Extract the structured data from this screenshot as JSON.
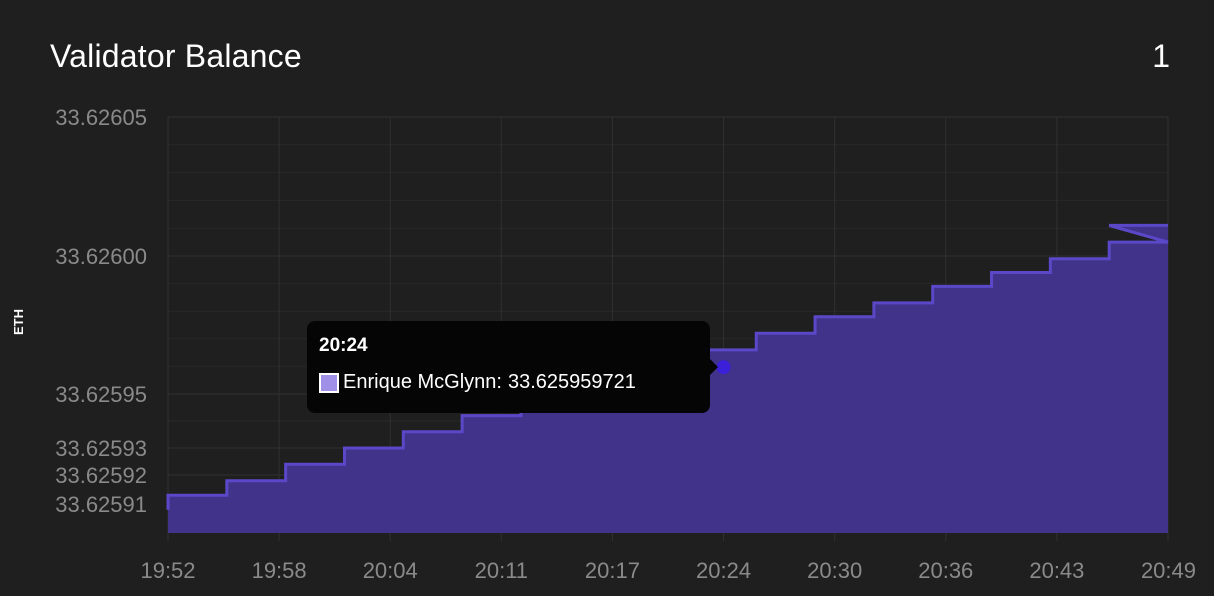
{
  "header": {
    "title": "Validator Balance",
    "count": "1"
  },
  "chart_data": {
    "type": "area",
    "step": true,
    "title": "Validator Balance",
    "xlabel": "",
    "ylabel": "ETH",
    "x_ticks": [
      "19:52",
      "19:58",
      "20:04",
      "20:11",
      "20:17",
      "20:24",
      "20:30",
      "20:36",
      "20:43",
      "20:49"
    ],
    "y_ticks": [
      33.62605,
      33.626,
      33.62595,
      33.62593,
      33.62592,
      33.62591
    ],
    "y_tick_labels": [
      "33.62605",
      "33.62600",
      "33.62595",
      "33.62593",
      "33.62592",
      "33.62591"
    ],
    "ylim": [
      33.6259,
      33.62605
    ],
    "grid": true,
    "series": [
      {
        "name": "Enrique McGlynn",
        "color": "#5a48c8",
        "fill": "#42338a",
        "values": [
          33.625913,
          33.625918,
          33.625924,
          33.62593,
          33.625936,
          33.625942,
          33.625948,
          33.625955,
          33.62596,
          33.625966,
          33.625972,
          33.625978,
          33.625983,
          33.625989,
          33.625994,
          33.625999,
          33.626005,
          33.626011
        ]
      }
    ]
  },
  "tooltip": {
    "time": "20:24",
    "series": "Enrique McGlynn",
    "value": "33.625959721",
    "x_index": 5
  }
}
